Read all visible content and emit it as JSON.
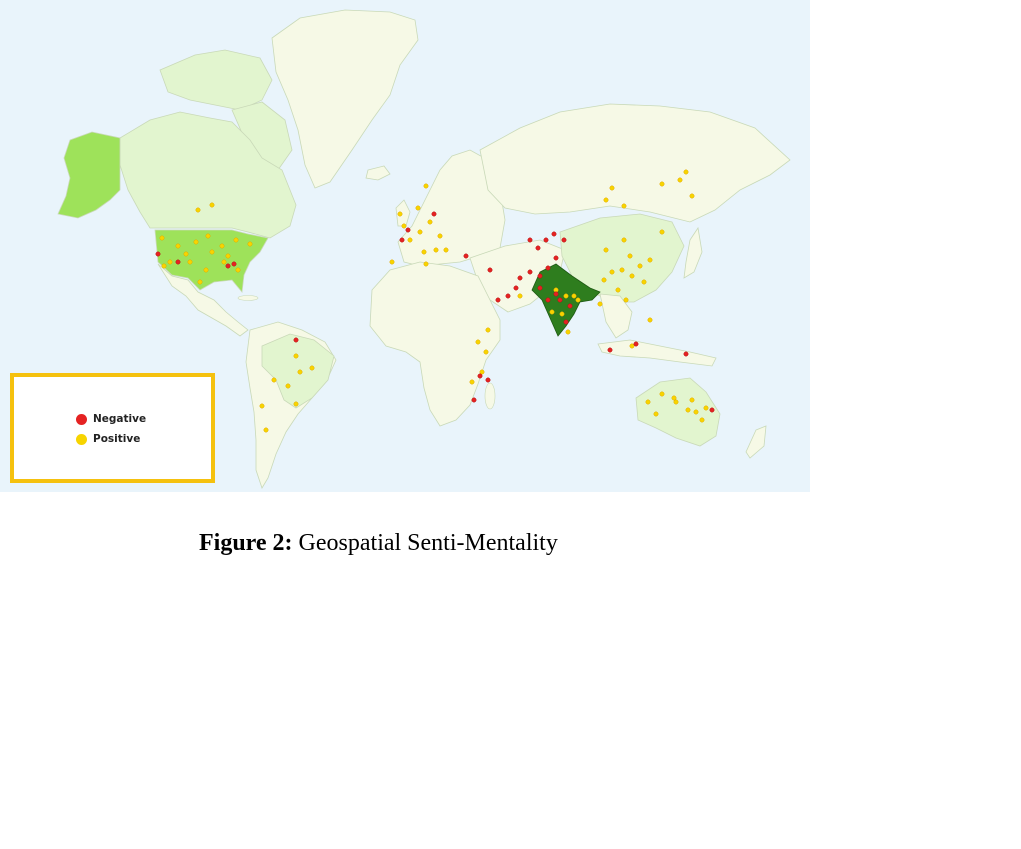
{
  "colors": {
    "ocean": "#e9f4fb",
    "land_no_data": "#f6f9e6",
    "land_low": "#e2f5cf",
    "land_mid": "#9ee25a",
    "land_high": "#2e7d1e",
    "negative": "#e52222",
    "positive": "#f7d400",
    "legend_border": "#f5c10e"
  },
  "legend": {
    "items": [
      {
        "label": "Negative",
        "color": "#e52222"
      },
      {
        "label": "Positive",
        "color": "#f7d400"
      }
    ]
  },
  "caption": {
    "label": "Figure 2:",
    "text": " Geospatial Senti-Mentality"
  }
}
